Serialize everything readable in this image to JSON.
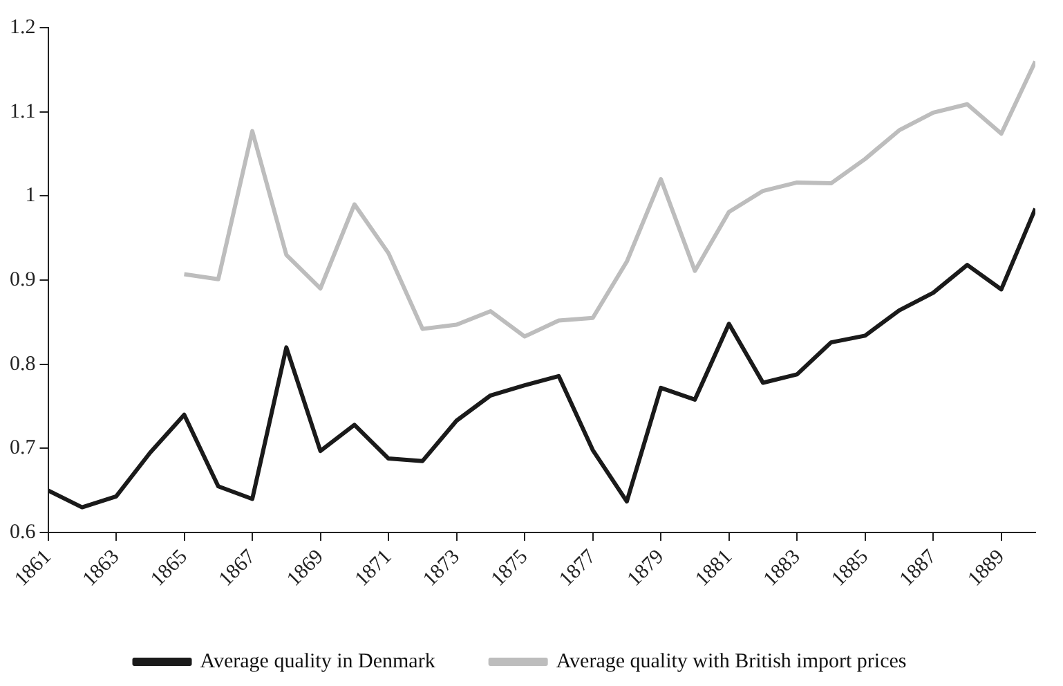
{
  "chart_data": {
    "type": "line",
    "x": [
      1861,
      1862,
      1863,
      1864,
      1865,
      1866,
      1867,
      1868,
      1869,
      1870,
      1871,
      1872,
      1873,
      1874,
      1875,
      1876,
      1877,
      1878,
      1879,
      1880,
      1881,
      1882,
      1883,
      1884,
      1885,
      1886,
      1887,
      1888,
      1889,
      1890
    ],
    "series": [
      {
        "name": "Average quality in Denmark",
        "color": "#1a1a1a",
        "values": [
          0.65,
          0.63,
          0.643,
          0.695,
          0.74,
          0.655,
          0.64,
          0.82,
          0.697,
          0.728,
          0.688,
          0.685,
          0.733,
          0.763,
          0.775,
          0.786,
          0.698,
          0.637,
          0.772,
          0.758,
          0.848,
          0.778,
          0.788,
          0.826,
          0.834,
          0.864,
          0.885,
          0.918,
          0.889,
          0.985
        ]
      },
      {
        "name": "Average quality with British import prices",
        "color": "#bdbdbd",
        "values": [
          null,
          null,
          null,
          null,
          0.907,
          0.901,
          1.077,
          0.93,
          0.89,
          0.99,
          0.932,
          0.842,
          0.847,
          0.863,
          0.833,
          0.852,
          0.855,
          0.922,
          1.02,
          0.911,
          0.981,
          1.006,
          1.016,
          1.015,
          1.044,
          1.078,
          1.099,
          1.109,
          1.074,
          1.16
        ]
      }
    ],
    "xlim": [
      1861,
      1890
    ],
    "xticks": [
      1861,
      1863,
      1865,
      1867,
      1869,
      1871,
      1873,
      1875,
      1877,
      1879,
      1881,
      1883,
      1885,
      1887,
      1889
    ],
    "ylim": [
      0.6,
      1.2
    ],
    "yticks": [
      0.6,
      0.7,
      0.8,
      0.9,
      1,
      1.1,
      1.2
    ],
    "grid": false,
    "legend": "bottom",
    "marker": "none",
    "line_style": "solid"
  }
}
